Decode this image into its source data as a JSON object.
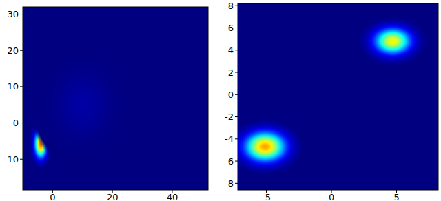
{
  "chart_data": [
    {
      "type": "density",
      "xlim": [
        -10,
        52
      ],
      "ylim": [
        -18.5,
        32
      ],
      "xticks": [
        0,
        20,
        40
      ],
      "yticks": [
        -10,
        0,
        10,
        20,
        30
      ],
      "clusters": [
        {
          "x": -4,
          "y": -5.8,
          "sx": 1.3,
          "sy": 2.4,
          "peak": 0.85
        },
        {
          "x": 10,
          "y": 5,
          "sx": 6,
          "sy": 6,
          "peak": 0.04
        }
      ]
    },
    {
      "type": "density",
      "xlim": [
        -7.2,
        8.2
      ],
      "ylim": [
        -8.6,
        8.2
      ],
      "xticks": [
        -5,
        0,
        5
      ],
      "yticks": [
        -8,
        -6,
        -4,
        -2,
        0,
        2,
        4,
        6,
        8
      ],
      "clusters": [
        {
          "x": -5.1,
          "y": -4.7,
          "sx": 1.0,
          "sy": 0.85,
          "peak": 0.8
        },
        {
          "x": 4.7,
          "y": 4.8,
          "sx": 0.9,
          "sy": 0.75,
          "peak": 0.7
        }
      ]
    }
  ]
}
